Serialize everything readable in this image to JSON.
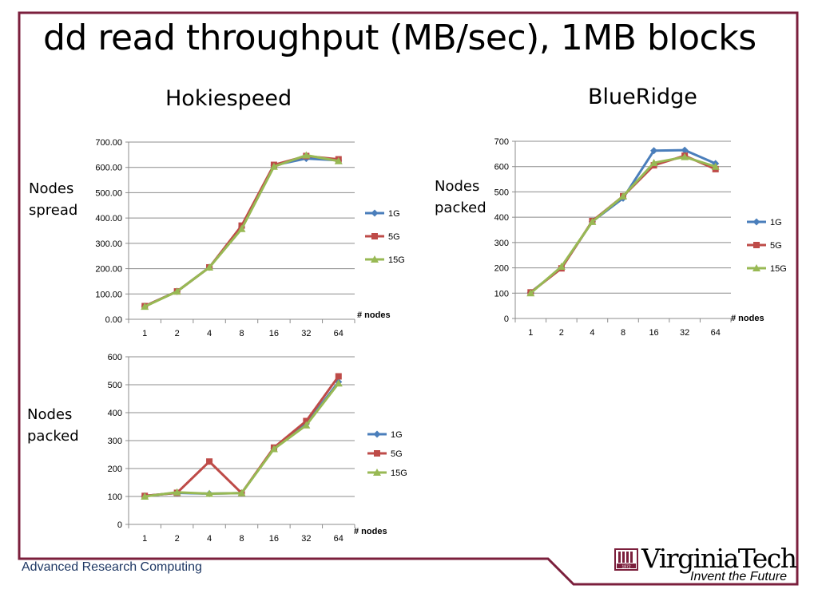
{
  "slide": {
    "title": "dd read throughput (MB/sec), 1MB blocks",
    "footer": "Advanced Research Computing",
    "logo_name": "VirginiaTech",
    "logo_tagline": "Invent the Future",
    "logo_year": "1872",
    "logo_colors": {
      "maroon": "#7b1f3c",
      "orange": "#c46a2a"
    },
    "frame_color": "#7b1f3c"
  },
  "chart_data": [
    {
      "id": "hokiespeed-spread",
      "type": "line",
      "title": "Hokiespeed",
      "side_label": [
        "Nodes",
        "spread"
      ],
      "xlabel": "# nodes",
      "categories": [
        "1",
        "2",
        "4",
        "8",
        "16",
        "32",
        "64"
      ],
      "ylim": [
        0,
        700
      ],
      "yticks": [
        "0.00",
        "100.00",
        "200.00",
        "300.00",
        "400.00",
        "500.00",
        "600.00",
        "700.00"
      ],
      "grid": true,
      "legend": "right",
      "series": [
        {
          "name": "1G",
          "color": "#4a7ebb",
          "marker": "diamond",
          "values": [
            52,
            110,
            205,
            365,
            608,
            635,
            628
          ]
        },
        {
          "name": "5G",
          "color": "#be4b48",
          "marker": "square",
          "values": [
            52,
            110,
            205,
            370,
            610,
            645,
            632
          ]
        },
        {
          "name": "15G",
          "color": "#98b954",
          "marker": "triangle",
          "values": [
            50,
            110,
            205,
            357,
            603,
            648,
            625
          ]
        }
      ]
    },
    {
      "id": "blueridge-packed",
      "type": "line",
      "title": "BlueRidge",
      "side_label": [
        "Nodes",
        "packed"
      ],
      "xlabel": "# nodes",
      "categories": [
        "1",
        "2",
        "4",
        "8",
        "16",
        "32",
        "64"
      ],
      "ylim": [
        0,
        700
      ],
      "yticks": [
        "0",
        "100",
        "200",
        "300",
        "400",
        "500",
        "600",
        "700"
      ],
      "grid": true,
      "legend": "right",
      "series": [
        {
          "name": "1G",
          "color": "#4a7ebb",
          "marker": "diamond",
          "values": [
            103,
            200,
            383,
            475,
            663,
            665,
            612
          ]
        },
        {
          "name": "5G",
          "color": "#be4b48",
          "marker": "square",
          "values": [
            103,
            198,
            385,
            483,
            605,
            643,
            590
          ]
        },
        {
          "name": "15G",
          "color": "#98b954",
          "marker": "triangle",
          "values": [
            100,
            205,
            382,
            483,
            615,
            638,
            600
          ]
        }
      ]
    },
    {
      "id": "hokiespeed-packed",
      "type": "line",
      "title": "",
      "side_label": [
        "Nodes",
        "packed"
      ],
      "xlabel": "# nodes",
      "categories": [
        "1",
        "2",
        "4",
        "8",
        "16",
        "32",
        "64"
      ],
      "ylim": [
        0,
        600
      ],
      "yticks": [
        "0",
        "100",
        "200",
        "300",
        "400",
        "500",
        "600"
      ],
      "grid": true,
      "legend": "right",
      "series": [
        {
          "name": "1G",
          "color": "#4a7ebb",
          "marker": "diamond",
          "values": [
            102,
            113,
            110,
            112,
            272,
            360,
            510
          ]
        },
        {
          "name": "5G",
          "color": "#be4b48",
          "marker": "square",
          "values": [
            102,
            113,
            225,
            112,
            275,
            370,
            530
          ]
        },
        {
          "name": "15G",
          "color": "#98b954",
          "marker": "triangle",
          "values": [
            100,
            115,
            110,
            112,
            270,
            355,
            505
          ]
        }
      ]
    }
  ]
}
